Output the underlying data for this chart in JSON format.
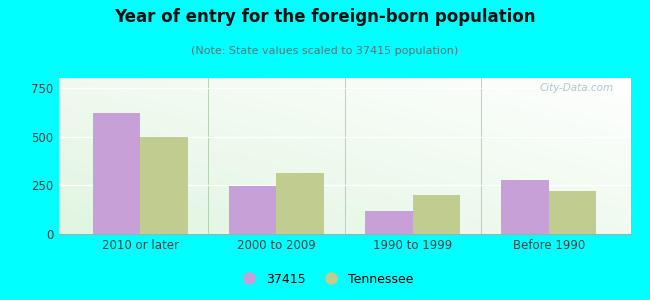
{
  "title": "Year of entry for the foreign-born population",
  "subtitle": "(Note: State values scaled to 37415 population)",
  "categories": [
    "2010 or later",
    "2000 to 2009",
    "1990 to 1999",
    "Before 1990"
  ],
  "city_values": [
    620,
    248,
    118,
    275
  ],
  "state_values": [
    497,
    315,
    198,
    218
  ],
  "city_color": "#c8a0d8",
  "state_color": "#c0cc90",
  "city_label": "37415",
  "state_label": "Tennessee",
  "ylim": [
    0,
    800
  ],
  "yticks": [
    0,
    250,
    500,
    750
  ],
  "plot_bg": "#eaf5e4",
  "outer_bg": "#00ffff",
  "bar_width": 0.35,
  "figsize": [
    6.5,
    3.0
  ],
  "dpi": 100,
  "title_color": "#111111",
  "subtitle_color": "#557777",
  "tick_color": "#444444",
  "watermark": "City-Data.com"
}
